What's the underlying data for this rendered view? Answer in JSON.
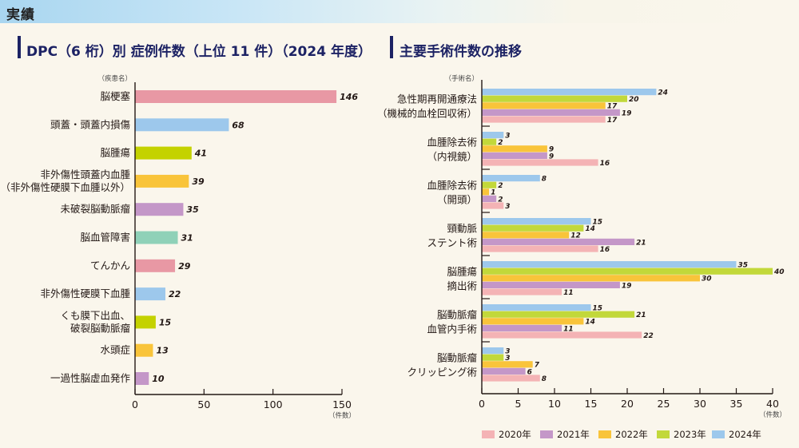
{
  "header": {
    "title": "実績"
  },
  "left_section": {
    "title": "DPC（6 桁）別  症例件数（上位 11 件）（2024 年度）"
  },
  "right_section": {
    "title": "主要手術件数の推移"
  },
  "chart_data": [
    {
      "type": "bar",
      "orientation": "horizontal",
      "title": "DPC（6 桁）別  症例件数（上位 11 件）（2024 年度）",
      "ylabel": "（疾患名）",
      "xlabel": "（件数）",
      "xlim": [
        0,
        150
      ],
      "xticks": [
        0,
        50,
        100,
        150
      ],
      "grid": false,
      "categories": [
        [
          "脳梗塞"
        ],
        [
          "頭蓋・頭蓋内損傷"
        ],
        [
          "脳腫瘍"
        ],
        [
          "非外傷性頭蓋内血腫",
          "（非外傷性硬膜下血腫以外）"
        ],
        [
          "未破裂脳動脈瘤"
        ],
        [
          "脳血管障害"
        ],
        [
          "てんかん"
        ],
        [
          "非外傷性硬膜下血腫"
        ],
        [
          "くも膜下出血、",
          "破裂脳動脈瘤"
        ],
        [
          "水頭症"
        ],
        [
          "一過性脳虚血発作"
        ]
      ],
      "values": [
        146,
        68,
        41,
        39,
        35,
        31,
        29,
        22,
        15,
        13,
        10
      ],
      "colors": [
        "#e898a4",
        "#9dc8ec",
        "#c4d200",
        "#f9c43a",
        "#c497c8",
        "#8fd1b8",
        "#e898a4",
        "#9dc8ec",
        "#c4d200",
        "#f9c43a",
        "#c497c8"
      ]
    },
    {
      "type": "bar",
      "orientation": "horizontal",
      "title": "主要手術件数の推移",
      "ylabel": "（手術名）",
      "xlabel": "（件数）",
      "xlim": [
        0,
        40
      ],
      "xticks": [
        0,
        5,
        10,
        15,
        20,
        25,
        30,
        35,
        40
      ],
      "grid": false,
      "legend_position": "bottom",
      "categories": [
        [
          "急性期再開通療法",
          "（機械的血栓回収術）"
        ],
        [
          "血腫除去術",
          "（内視鏡）"
        ],
        [
          "血腫除去術",
          "（開頭）"
        ],
        [
          "頸動脈",
          "ステント術"
        ],
        [
          "脳腫瘍",
          "摘出術"
        ],
        [
          "脳動脈瘤",
          "血管内手術"
        ],
        [
          "脳動脈瘤",
          "クリッピング術"
        ]
      ],
      "series_order_in_group": [
        "2024年",
        "2023年",
        "2022年",
        "2021年",
        "2020年"
      ],
      "series": [
        {
          "name": "2020年",
          "color": "#f4b3b5",
          "values": [
            17,
            16,
            3,
            16,
            11,
            22,
            8
          ]
        },
        {
          "name": "2021年",
          "color": "#c497c8",
          "values": [
            19,
            9,
            2,
            21,
            19,
            11,
            6
          ]
        },
        {
          "name": "2022年",
          "color": "#f9c43a",
          "values": [
            17,
            9,
            1,
            12,
            30,
            14,
            7
          ]
        },
        {
          "name": "2023年",
          "color": "#c2d83a",
          "values": [
            20,
            2,
            2,
            14,
            40,
            21,
            3
          ]
        },
        {
          "name": "2024年",
          "color": "#9dc8ec",
          "values": [
            24,
            3,
            8,
            15,
            35,
            15,
            3
          ]
        }
      ]
    }
  ]
}
